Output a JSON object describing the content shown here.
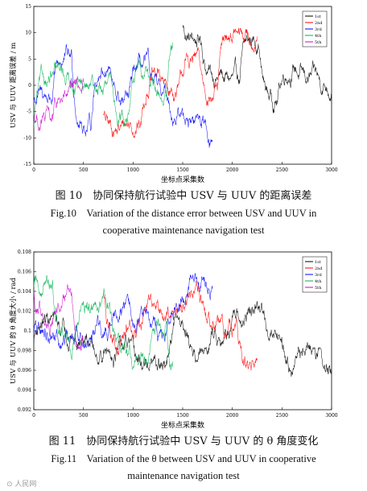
{
  "figures": [
    {
      "caption_zh": "图 10　协同保持航行试验中 USV 与 UUV 的距离误差",
      "caption_en_line1": "Fig.10　Variation of the distance error between USV and UUV in",
      "caption_en_line2": "cooperative maintenance navigation test",
      "chart_data": {
        "type": "line",
        "title": "",
        "xlabel": "坐标点采集数",
        "ylabel": "USV 与 UUV 距离误差 / m",
        "xlim": [
          0,
          3000
        ],
        "ylim": [
          -15,
          15
        ],
        "xticks": [
          "0",
          "500",
          "1000",
          "1500",
          "2000",
          "2500",
          "3000"
        ],
        "yticks": [
          "-15",
          "-10",
          "-5",
          "0",
          "5",
          "10",
          "15"
        ],
        "legend_position": "top-right",
        "series": [
          {
            "name": "1st",
            "color": "#000000",
            "x_range": [
              1500,
              3000
            ],
            "y_band": [
              -13,
              13
            ],
            "drift": [
              12,
              2
            ]
          },
          {
            "name": "2nd",
            "color": "#ff0000",
            "x_range": [
              700,
              2250
            ],
            "y_band": [
              -13,
              13
            ],
            "drift": [
              -6,
              11
            ]
          },
          {
            "name": "3rd",
            "color": "#0000ff",
            "x_range": [
              0,
              1800
            ],
            "y_band": [
              -14,
              13
            ],
            "drift": [
              -3,
              -7
            ]
          },
          {
            "name": "4th",
            "color": "#00b050",
            "x_range": [
              0,
              1400
            ],
            "y_band": [
              -14,
              13
            ],
            "drift": [
              -8,
              12
            ]
          },
          {
            "name": "5th",
            "color": "#cc00cc",
            "x_range": [
              0,
              500
            ],
            "y_band": [
              -12,
              8
            ],
            "drift": [
              -6,
              -8
            ]
          }
        ]
      }
    },
    {
      "caption_zh": "图 11　协同保持航行试验中 USV 与 UUV 的 θ 角度变化",
      "caption_en_line1": "Fig.11　Variation of the θ between USV and UUV in cooperative",
      "caption_en_line2": "maintenance navigation test",
      "chart_data": {
        "type": "line",
        "title": "",
        "xlabel": "坐标点采集数",
        "ylabel": "USV 与 UUV 的 θ 角度大小 / rad",
        "xlim": [
          0,
          3000
        ],
        "ylim": [
          0.092,
          0.108
        ],
        "xticks": [
          "0",
          "500",
          "1000",
          "1500",
          "2000",
          "2500",
          "3000"
        ],
        "yticks": [
          "0.092",
          "0.094",
          "0.096",
          "0.098",
          "0.1",
          "0.102",
          "0.104",
          "0.106",
          "0.108"
        ],
        "legend_position": "top-right",
        "series": [
          {
            "name": "1st",
            "color": "#000000",
            "x_range": [
              0,
              3000
            ],
            "y_band": [
              0.0935,
              0.1065
            ],
            "drift": [
              0.099,
              0.096
            ]
          },
          {
            "name": "2nd",
            "color": "#ff0000",
            "x_range": [
              700,
              2250
            ],
            "y_band": [
              0.0935,
              0.1065
            ],
            "drift": [
              0.104,
              0.0945
            ]
          },
          {
            "name": "3rd",
            "color": "#0000ff",
            "x_range": [
              0,
              1800
            ],
            "y_band": [
              0.0935,
              0.1072
            ],
            "drift": [
              0.1,
              0.105
            ]
          },
          {
            "name": "4th",
            "color": "#00b050",
            "x_range": [
              0,
              1400
            ],
            "y_band": [
              0.0935,
              0.107
            ],
            "drift": [
              0.104,
              0.0945
            ]
          },
          {
            "name": "5th",
            "color": "#cc00cc",
            "x_range": [
              0,
              500
            ],
            "y_band": [
              0.0955,
              0.1065
            ],
            "drift": [
              0.104,
              0.101
            ]
          }
        ]
      }
    }
  ],
  "watermark": "⊙ 人民网"
}
